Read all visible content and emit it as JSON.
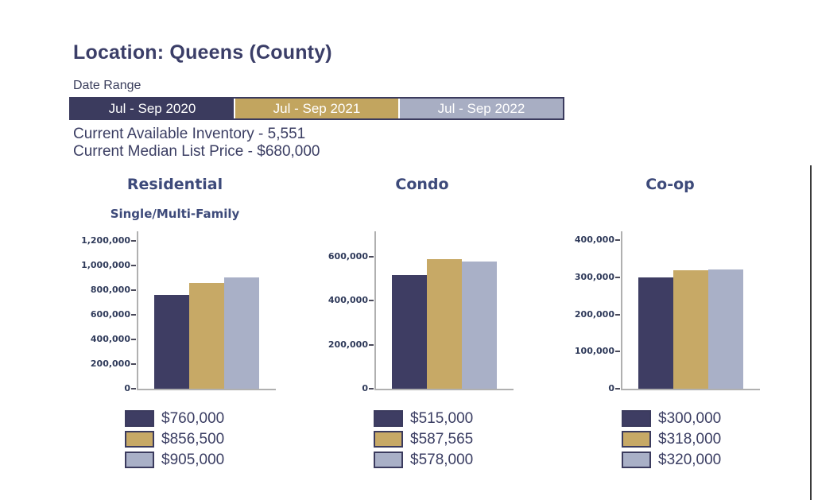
{
  "header": {
    "title": "Location: Queens (County)",
    "date_range_label": "Date Range"
  },
  "date_ranges": [
    {
      "label": "Jul - Sep 2020",
      "color": "#3B3B5E"
    },
    {
      "label": "Jul - Sep 2021",
      "color": "#C2A55F"
    },
    {
      "label": "Jul - Sep 2022",
      "color": "#A8AEC3"
    }
  ],
  "stats": [
    "Current Available Inventory - 5,551",
    "Current Median List Price - $680,000"
  ],
  "colors": {
    "series": [
      "#3E3D63",
      "#C7A966",
      "#A9B0C7"
    ],
    "text": "#3B3E63",
    "chart_title": "#3D4A7A",
    "axis_line": "#B0B0B0"
  },
  "chart_data": [
    {
      "type": "bar",
      "title": "Residential",
      "subtitle": "Single/Multi-Family",
      "categories": [
        "Jul - Sep 2020",
        "Jul - Sep 2021",
        "Jul - Sep 2022"
      ],
      "values": [
        760000,
        856500,
        905000
      ],
      "value_labels": [
        "$760,000",
        "$856,500",
        "$905,000"
      ],
      "ylim": [
        0,
        1250000
      ],
      "y_ticks": [
        {
          "value": 0,
          "label": "0"
        },
        {
          "value": 200000,
          "label": "200,000"
        },
        {
          "value": 400000,
          "label": "400,000"
        },
        {
          "value": 600000,
          "label": "600,000"
        },
        {
          "value": 800000,
          "label": "800,000"
        },
        {
          "value": 1000000,
          "label": "1,000,000"
        },
        {
          "value": 1200000,
          "label": "1,200,000"
        }
      ],
      "legend_position": "bottom",
      "grid": false
    },
    {
      "type": "bar",
      "title": "Condo",
      "subtitle": null,
      "categories": [
        "Jul - Sep 2020",
        "Jul - Sep 2021",
        "Jul - Sep 2022"
      ],
      "values": [
        515000,
        587565,
        578000
      ],
      "value_labels": [
        "$515,000",
        "$587,565",
        "$578,000"
      ],
      "ylim": [
        0,
        700000
      ],
      "y_ticks": [
        {
          "value": 0,
          "label": "0"
        },
        {
          "value": 200000,
          "label": "200,000"
        },
        {
          "value": 400000,
          "label": "400,000"
        },
        {
          "value": 600000,
          "label": "600,000"
        }
      ],
      "legend_position": "bottom",
      "grid": false
    },
    {
      "type": "bar",
      "title": "Co-op",
      "subtitle": null,
      "categories": [
        "Jul - Sep 2020",
        "Jul - Sep 2021",
        "Jul - Sep 2022"
      ],
      "values": [
        300000,
        318000,
        320000
      ],
      "value_labels": [
        "$300,000",
        "$318,000",
        "$320,000"
      ],
      "ylim": [
        0,
        415000
      ],
      "y_ticks": [
        {
          "value": 0,
          "label": "0"
        },
        {
          "value": 100000,
          "label": "100,000"
        },
        {
          "value": 200000,
          "label": "200,000"
        },
        {
          "value": 300000,
          "label": "300,000"
        },
        {
          "value": 400000,
          "label": "400,000"
        }
      ],
      "legend_position": "bottom",
      "grid": false
    }
  ]
}
